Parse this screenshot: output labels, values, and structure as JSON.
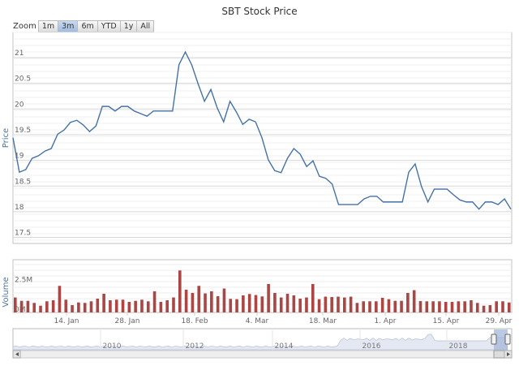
{
  "chart_data": {
    "type": "line",
    "title": "SBT Stock Price",
    "zoom": {
      "label": "Zoom",
      "buttons": [
        "1m",
        "3m",
        "6m",
        "YTD",
        "1y",
        "All"
      ],
      "selected": "3m"
    },
    "price": {
      "ylabel": "Price",
      "yticks": [
        "21",
        "20.5",
        "20",
        "19.5",
        "19",
        "18.5",
        "18",
        "17.5"
      ],
      "ylim": [
        17.5,
        21.35
      ],
      "values": [
        19.44,
        18.77,
        18.82,
        19.04,
        19.09,
        19.18,
        19.23,
        19.51,
        19.59,
        19.74,
        19.78,
        19.69,
        19.56,
        19.67,
        20.05,
        20.05,
        19.96,
        20.05,
        20.05,
        19.96,
        19.91,
        19.86,
        19.96,
        19.96,
        19.96,
        19.96,
        20.86,
        21.11,
        20.86,
        20.49,
        20.15,
        20.38,
        20.02,
        19.75,
        20.15,
        19.94,
        19.7,
        19.8,
        19.75,
        19.44,
        19.01,
        18.8,
        18.76,
        19.04,
        19.23,
        19.12,
        18.88,
        18.99,
        18.69,
        18.65,
        18.54,
        18.14,
        18.14,
        18.14,
        18.14,
        18.25,
        18.3,
        18.3,
        18.19,
        18.19,
        18.19,
        18.19,
        18.77,
        18.93,
        18.49,
        18.19,
        18.44,
        18.44,
        18.44,
        18.33,
        18.23,
        18.19,
        18.19,
        18.05,
        18.19,
        18.19,
        18.14,
        18.25,
        18.05
      ],
      "color": "#4572a7"
    },
    "volume": {
      "ylabel": "Volume",
      "yticks": [
        "2.5M",
        "0M"
      ],
      "unit": "M",
      "values": [
        1.29,
        1.0,
        1.0,
        0.82,
        0.58,
        0.96,
        1.05,
        2.29,
        1.1,
        0.63,
        0.86,
        0.82,
        0.96,
        1.19,
        1.61,
        1.05,
        1.1,
        1.1,
        0.91,
        1.0,
        1.1,
        0.96,
        1.82,
        0.91,
        1.05,
        1.29,
        3.62,
        1.96,
        1.68,
        2.29,
        1.64,
        1.82,
        1.4,
        2.06,
        1.17,
        1.14,
        1.47,
        1.59,
        1.5,
        1.38,
        2.45,
        1.68,
        1.29,
        1.61,
        1.47,
        1.19,
        1.29,
        2.45,
        1.14,
        1.36,
        1.33,
        1.36,
        1.29,
        1.36,
        0.82,
        0.96,
        0.96,
        0.96,
        1.26,
        1.14,
        1.0,
        1.0,
        1.68,
        1.92,
        0.98,
        0.96,
        0.96,
        0.96,
        0.91,
        0.91,
        0.96,
        0.96,
        1.05,
        0.82,
        0.58,
        0.63,
        0.96,
        0.96,
        0.86
      ],
      "color": "#aa4643"
    },
    "xticks": [
      "14. Jan",
      "28. Jan",
      "18. Feb",
      "4. Mar",
      "18. Mar",
      "1. Apr",
      "15. Apr",
      "29. Apr"
    ],
    "navigator": {
      "years": [
        "2010",
        "2012",
        "2014",
        "2016",
        "2018"
      ]
    }
  }
}
